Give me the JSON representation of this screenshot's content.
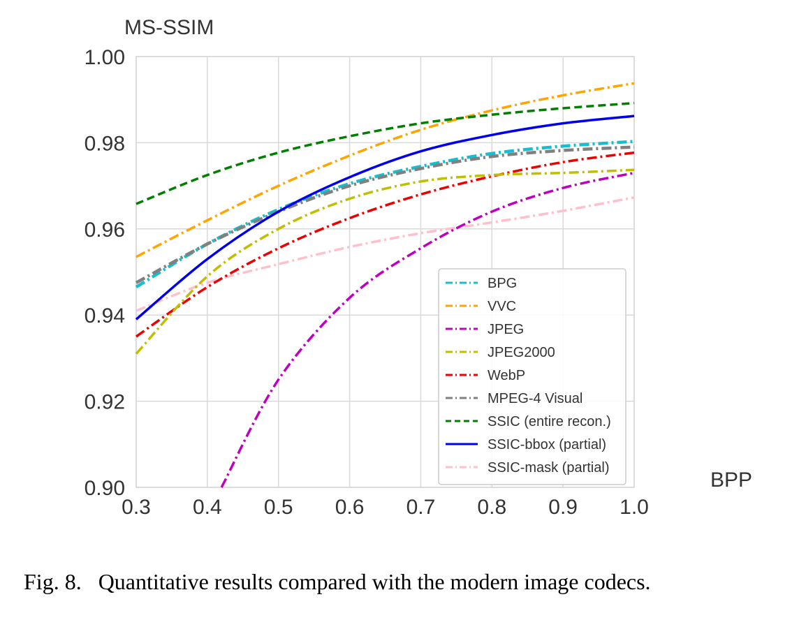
{
  "caption": "Fig. 8.   Quantitative results compared with the modern image codecs.",
  "chart_data": {
    "type": "line",
    "xlabel": "BPP",
    "ylabel": "MS-SSIM",
    "xlim": [
      0.3,
      1.0
    ],
    "ylim": [
      0.9,
      1.0
    ],
    "x_ticks": [
      "0.3",
      "0.4",
      "0.5",
      "0.6",
      "0.7",
      "0.8",
      "0.9",
      "1.0"
    ],
    "y_ticks": [
      "0.90",
      "0.92",
      "0.94",
      "0.96",
      "0.98",
      "1.00"
    ],
    "grid": true,
    "legend_position": "bottom-right",
    "x": [
      0.3,
      0.4,
      0.5,
      0.6,
      0.7,
      0.8,
      0.9,
      1.0
    ],
    "series": [
      {
        "name": "BPG",
        "color": "#17becf",
        "dash": "dashdot",
        "values": [
          0.9465,
          0.9565,
          0.9645,
          0.9705,
          0.9745,
          0.9775,
          0.9792,
          0.9803
        ]
      },
      {
        "name": "VVC",
        "color": "#ffa500",
        "dash": "dashdot",
        "values": [
          0.9535,
          0.962,
          0.97,
          0.977,
          0.983,
          0.9875,
          0.991,
          0.9938
        ]
      },
      {
        "name": "JPEG",
        "color": "#bf00bf",
        "dash": "dashdot",
        "values": [
          null,
          0.9,
          0.925,
          0.944,
          0.9555,
          0.964,
          0.9695,
          0.973
        ],
        "x_start": 0.42
      },
      {
        "name": "JPEG2000",
        "color": "#bfbf00",
        "dash": "dashdot",
        "values": [
          0.931,
          0.949,
          0.96,
          0.967,
          0.971,
          0.9725,
          0.973,
          0.9737
        ]
      },
      {
        "name": "WebP",
        "color": "#ee0000",
        "dash": "dashdot",
        "values": [
          0.935,
          0.9465,
          0.9555,
          0.9625,
          0.968,
          0.9722,
          0.9755,
          0.9777
        ]
      },
      {
        "name": "MPEG-4 Visual",
        "color": "#808080",
        "dash": "dashdot",
        "values": [
          0.9475,
          0.9565,
          0.964,
          0.97,
          0.974,
          0.9768,
          0.9782,
          0.979
        ]
      },
      {
        "name": "SSIC (entire recon.)",
        "color": "#007f00",
        "dash": "dashed",
        "values": [
          0.9658,
          0.9725,
          0.9777,
          0.9815,
          0.9845,
          0.9865,
          0.988,
          0.9892
        ]
      },
      {
        "name": "SSIC-bbox (partial)",
        "color": "#0000ee",
        "dash": "solid",
        "values": [
          0.939,
          0.953,
          0.964,
          0.972,
          0.978,
          0.9818,
          0.9845,
          0.9862
        ]
      },
      {
        "name": "SSIC-mask (partial)",
        "color": "#ffc0cb",
        "dash": "dashdot",
        "values": [
          0.941,
          0.9475,
          0.9518,
          0.9558,
          0.959,
          0.9615,
          0.9642,
          0.9673
        ]
      }
    ]
  }
}
